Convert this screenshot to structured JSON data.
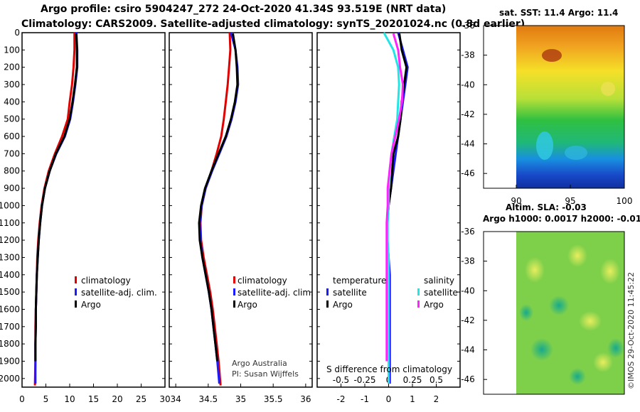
{
  "title_line1": "Argo profile: csiro 5904247_272 24-Oct-2020 41.34S 93.519E (NRT data)",
  "title_line2": "Climatology: CARS2009. Satellite-adjusted climatology: synTS_20201024.nc (0.8d earlier)",
  "credit": "©IMOS 29-Oct-2020 11:45:22",
  "colors": {
    "climatology": "#e00000",
    "satellite": "#1a1aff",
    "argo": "#000000",
    "sat_salinity": "#22e6e6",
    "argo_salinity": "#ff22ff"
  },
  "chart_data": [
    {
      "type": "line",
      "title": "Temperature profile",
      "xlim": [
        0,
        30
      ],
      "ylim": [
        2050,
        0
      ],
      "x_ticks": [
        "0",
        "5",
        "10",
        "15",
        "20",
        "25",
        "30"
      ],
      "y_ticks": [
        "0",
        "100",
        "200",
        "300",
        "400",
        "500",
        "600",
        "700",
        "800",
        "900",
        "1000",
        "1100",
        "1200",
        "1300",
        "1400",
        "1500",
        "1600",
        "1700",
        "1800",
        "1900",
        "2000"
      ],
      "legend": [
        "climatology",
        "satellite-adj. clim.",
        "Argo"
      ],
      "series": [
        {
          "name": "climatology",
          "x": [
            11.0,
            11.0,
            10.8,
            10.5,
            10.0,
            9.6,
            8.4,
            6.9,
            5.6,
            4.7,
            4.1,
            3.7,
            3.4,
            3.2,
            3.1,
            3.0,
            2.9,
            2.8,
            2.8,
            2.8,
            2.7
          ],
          "depth": [
            0,
            100,
            200,
            300,
            400,
            500,
            600,
            700,
            800,
            900,
            1000,
            1100,
            1200,
            1300,
            1400,
            1500,
            1600,
            1700,
            1800,
            1900,
            2040
          ]
        },
        {
          "name": "satellite-adj. clim.",
          "x": [
            11.4,
            11.6,
            11.6,
            11.2,
            10.7,
            10.1,
            9.0,
            7.2,
            5.8,
            4.8,
            4.2,
            3.8,
            3.5,
            3.3,
            3.1,
            3.0,
            2.9,
            2.9,
            2.8,
            2.8,
            2.8
          ],
          "depth": [
            0,
            100,
            200,
            300,
            400,
            500,
            600,
            700,
            800,
            900,
            1000,
            1100,
            1200,
            1300,
            1400,
            1500,
            1600,
            1700,
            1800,
            1900,
            2030
          ]
        },
        {
          "name": "Argo",
          "x": [
            11.4,
            11.5,
            11.5,
            11.1,
            10.6,
            10.0,
            8.9,
            7.1,
            5.8,
            4.8,
            4.2,
            3.8,
            3.5,
            3.3,
            3.1,
            3.0,
            2.9,
            2.9,
            2.8,
            2.8
          ],
          "depth": [
            5,
            100,
            200,
            300,
            400,
            500,
            600,
            700,
            800,
            900,
            1000,
            1100,
            1200,
            1300,
            1400,
            1500,
            1600,
            1700,
            1800,
            1900
          ]
        }
      ]
    },
    {
      "type": "line",
      "title": "Salinity profile",
      "xlim": [
        33.9,
        36.1
      ],
      "ylim": [
        2050,
        0
      ],
      "x_ticks": [
        "34",
        "34.5",
        "35",
        "35.5",
        "36"
      ],
      "legend": [
        "climatology",
        "satellite-adj. clim.",
        "Argo"
      ],
      "annotation": [
        "Argo Australia",
        "PI: Susan Wijffels"
      ],
      "series": [
        {
          "name": "climatology",
          "x": [
            34.83,
            34.84,
            34.82,
            34.8,
            34.77,
            34.74,
            34.7,
            34.63,
            34.55,
            34.46,
            34.4,
            34.38,
            34.39,
            34.43,
            34.48,
            34.53,
            34.57,
            34.6,
            34.63,
            34.66,
            34.69
          ],
          "depth": [
            0,
            100,
            200,
            300,
            400,
            500,
            600,
            700,
            800,
            900,
            1000,
            1100,
            1200,
            1300,
            1400,
            1500,
            1600,
            1700,
            1800,
            1900,
            2040
          ]
        },
        {
          "name": "satellite-adj. clim.",
          "x": [
            34.85,
            34.92,
            34.95,
            34.96,
            34.92,
            34.86,
            34.78,
            34.67,
            34.56,
            34.46,
            34.4,
            34.37,
            34.38,
            34.41,
            34.46,
            34.51,
            34.55,
            34.58,
            34.61,
            34.64,
            34.67
          ],
          "depth": [
            0,
            100,
            200,
            300,
            400,
            500,
            600,
            700,
            800,
            900,
            1000,
            1100,
            1200,
            1300,
            1400,
            1500,
            1600,
            1700,
            1800,
            1900,
            2030
          ]
        },
        {
          "name": "Argo",
          "x": [
            34.88,
            34.92,
            34.94,
            34.95,
            34.91,
            34.85,
            34.77,
            34.66,
            34.55,
            34.45,
            34.39,
            34.36,
            34.37,
            34.41,
            34.46,
            34.51,
            34.55,
            34.58,
            34.61,
            34.64
          ],
          "depth": [
            5,
            100,
            200,
            300,
            400,
            500,
            600,
            700,
            800,
            900,
            1000,
            1100,
            1200,
            1300,
            1400,
            1500,
            1600,
            1700,
            1800,
            1900
          ]
        }
      ]
    },
    {
      "type": "line",
      "title": "Differences from climatology",
      "xlabel": "S difference from climatology",
      "temperature_axis": {
        "ticks": [
          "-2",
          "-1",
          "0",
          "1",
          "2"
        ],
        "xlim": [
          -3,
          3
        ]
      },
      "salinity_axis": {
        "ticks": [
          "-0.5",
          "-0.25",
          "0",
          "0.25",
          "0.5"
        ],
        "xlim": [
          -0.75,
          0.75
        ]
      },
      "ylim": [
        2050,
        0
      ],
      "legend": {
        "temperature": [
          "satellite",
          "Argo"
        ],
        "salinity": [
          "satellite",
          "Argo"
        ],
        "temperature_title": "temperature",
        "salinity_title": "salinity"
      },
      "series": [
        {
          "name": "temperature satellite",
          "axis": "temperature",
          "x": [
            0.4,
            0.6,
            0.8,
            0.7,
            0.6,
            0.5,
            0.4,
            0.3,
            0.2,
            0.1,
            0.0,
            -0.05,
            -0.05,
            0.0,
            0.05,
            0.05,
            0.05,
            0.05,
            0.05,
            0.05,
            0.05
          ],
          "depth": [
            0,
            100,
            200,
            300,
            400,
            500,
            600,
            700,
            800,
            900,
            1000,
            1100,
            1200,
            1300,
            1400,
            1500,
            1600,
            1700,
            1800,
            1900,
            2030
          ]
        },
        {
          "name": "temperature Argo",
          "axis": "temperature",
          "x": [
            0.45,
            0.55,
            0.75,
            0.65,
            0.55,
            0.5,
            0.4,
            0.2,
            0.15,
            0.1,
            0.0,
            -0.05
          ],
          "depth": [
            5,
            100,
            200,
            300,
            400,
            500,
            600,
            700,
            800,
            900,
            1000,
            1100
          ]
        },
        {
          "name": "salinity satellite",
          "axis": "salinity",
          "x": [
            -0.05,
            0.05,
            0.1,
            0.11,
            0.1,
            0.09,
            0.06,
            0.03,
            0.01,
            0.0,
            0.0,
            -0.01,
            -0.01,
            0.0,
            0.0,
            0.0,
            0.0,
            0.0,
            0.0,
            0.0,
            0.0
          ],
          "depth": [
            0,
            100,
            200,
            300,
            400,
            500,
            600,
            700,
            800,
            900,
            1000,
            1100,
            1200,
            1300,
            1400,
            1500,
            1600,
            1700,
            1800,
            1900,
            2030
          ]
        },
        {
          "name": "salinity Argo",
          "axis": "salinity",
          "x": [
            0.05,
            0.1,
            0.12,
            0.15,
            0.14,
            0.11,
            0.07,
            0.03,
            0.01,
            -0.01,
            -0.01,
            -0.02,
            -0.02,
            -0.02,
            -0.02,
            -0.02,
            -0.02,
            -0.02,
            -0.02,
            -0.02
          ],
          "depth": [
            5,
            100,
            200,
            300,
            400,
            500,
            600,
            700,
            800,
            900,
            1000,
            1100,
            1200,
            1300,
            1400,
            1500,
            1600,
            1700,
            1800,
            1900
          ]
        }
      ]
    },
    {
      "type": "heatmap",
      "title": "sat. SST: 11.4 Argo: 11.4",
      "x_ticks": [
        "90",
        "95",
        "100"
      ],
      "y_ticks": [
        "-36",
        "-38",
        "-40",
        "-42",
        "-44",
        "-46"
      ],
      "xlim": [
        90,
        100
      ],
      "ylim": [
        -47,
        -36
      ]
    },
    {
      "type": "heatmap",
      "title_line1": "Altim. SLA: -0.03",
      "title_line2": "Argo h1000: 0.0017 h2000: -0.011",
      "y_ticks": [
        "-36",
        "-38",
        "-40",
        "-42",
        "-44",
        "-46"
      ],
      "ylim": [
        -47,
        -36
      ]
    }
  ]
}
